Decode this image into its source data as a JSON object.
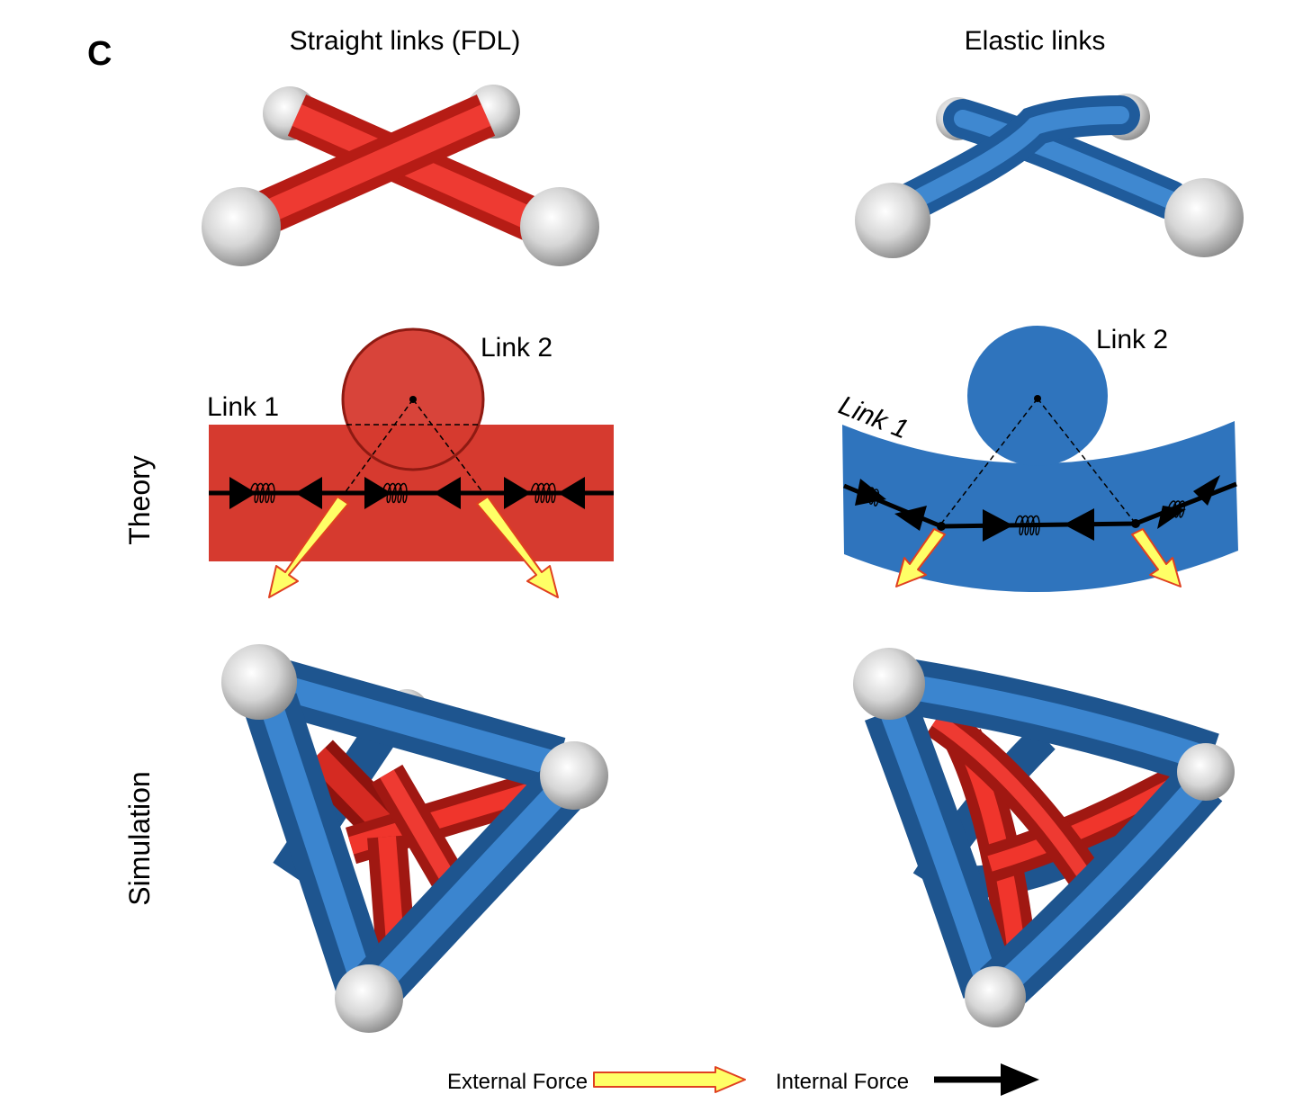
{
  "panel_letter": "C",
  "columns": {
    "left_title": "Straight links (FDL)",
    "right_title": "Elastic links"
  },
  "rows": {
    "theory": "Theory",
    "simulation": "Simulation"
  },
  "labels": {
    "link1_left": "Link 1",
    "link2_left": "Link 2",
    "link1_right": "Link 1",
    "link2_right": "Link 2"
  },
  "legend": {
    "external_force": "External Force",
    "internal_force": "Internal Force"
  },
  "colors": {
    "red_link": "#d63a2f",
    "blue_link": "#2f74bd",
    "node_gray": "#d8d8d8",
    "external_arrow_fill": "#ffff66",
    "external_arrow_edge": "#e04020",
    "internal_arrow": "#000000"
  }
}
